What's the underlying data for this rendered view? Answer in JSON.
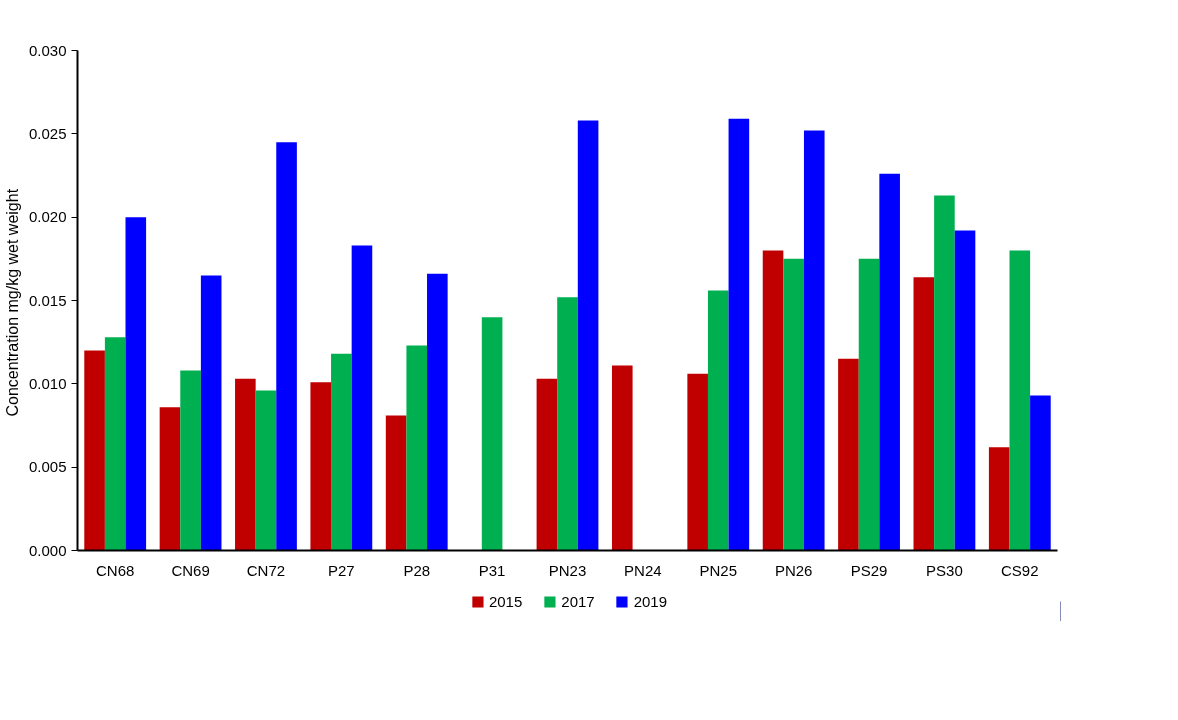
{
  "chart_data": {
    "type": "bar",
    "ylabel": "Concentration mg/kg  wet weight",
    "categories": [
      "CN68",
      "CN69",
      "CN72",
      "P27",
      "P28",
      "P31",
      "PN23",
      "PN24",
      "PN25",
      "PN26",
      "PS29",
      "PS30",
      "CS92"
    ],
    "series": [
      {
        "name": "2015",
        "color": "#c00000",
        "values": [
          0.012,
          0.0086,
          0.0103,
          0.0101,
          0.0081,
          null,
          0.0103,
          0.0111,
          0.0106,
          0.018,
          0.0115,
          0.0164,
          0.0062
        ]
      },
      {
        "name": "2017",
        "color": "#00b050",
        "values": [
          0.0128,
          0.0108,
          0.0096,
          0.0118,
          0.0123,
          0.014,
          0.0152,
          null,
          0.0156,
          0.0175,
          0.0175,
          0.0213,
          0.018
        ]
      },
      {
        "name": "2019",
        "color": "#0000ff",
        "values": [
          0.02,
          0.0165,
          0.0245,
          0.0183,
          0.0166,
          null,
          0.0258,
          null,
          0.0259,
          0.0252,
          0.0226,
          0.0192,
          0.0093
        ]
      }
    ],
    "ylim": [
      0,
      0.03
    ],
    "yticks": [
      {
        "value": 0,
        "label": "0.000"
      },
      0.005,
      {
        "value": 0.01,
        "label": "0.010"
      },
      0.015,
      {
        "value": 0.02,
        "label": "0.020"
      },
      0.025,
      {
        "value": 0.03,
        "label": "0.030"
      }
    ],
    "grid": false,
    "legend": "bottom"
  }
}
